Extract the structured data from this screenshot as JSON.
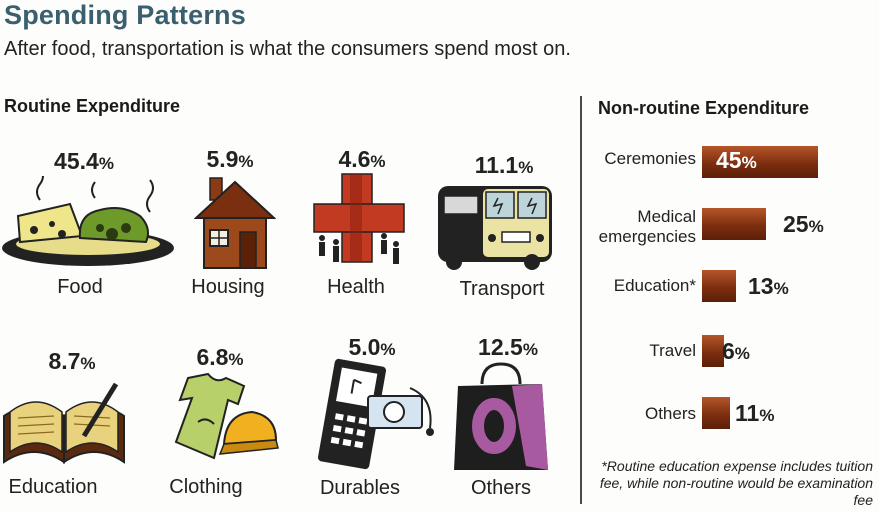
{
  "title": "Spending Patterns",
  "subtitle": "After food, transportation is what the consumers spend most on.",
  "routine": {
    "heading": "Routine Expenditure",
    "items": [
      {
        "label": "Food",
        "value": "45.4",
        "icon": "food-plate-icon"
      },
      {
        "label": "Housing",
        "value": "5.9",
        "icon": "house-icon"
      },
      {
        "label": "Health",
        "value": "4.6",
        "icon": "health-cross-icon"
      },
      {
        "label": "Transport",
        "value": "11.1",
        "icon": "bus-icon"
      },
      {
        "label": "Education",
        "value": "8.7",
        "icon": "book-icon"
      },
      {
        "label": "Clothing",
        "value": "6.8",
        "icon": "shirt-cap-icon"
      },
      {
        "label": "Durables",
        "value": "5.0",
        "icon": "phone-camera-icon"
      },
      {
        "label": "Others",
        "value": "12.5",
        "icon": "shopping-bag-icon"
      }
    ]
  },
  "non_routine": {
    "heading": "Non-routine Expenditure",
    "items": [
      {
        "label_line1": "Ceremonies",
        "label_line2": "",
        "value": "45"
      },
      {
        "label_line1": "Medical",
        "label_line2": "emergencies",
        "value": "25"
      },
      {
        "label_line1": "Education*",
        "label_line2": "",
        "value": "13"
      },
      {
        "label_line1": "Travel",
        "label_line2": "",
        "value": "6"
      },
      {
        "label_line1": "Others",
        "label_line2": "",
        "value": "11"
      }
    ]
  },
  "unit": "%",
  "footnote": "*Routine education expense includes tuition fee, while non-routine would be examination fee",
  "colors": {
    "title": "#3a5f6e",
    "bar": "#7d2e10",
    "icon_dark": "#222222"
  },
  "chart_data": [
    {
      "type": "table",
      "title": "Routine Expenditure",
      "categories": [
        "Food",
        "Housing",
        "Health",
        "Transport",
        "Education",
        "Clothing",
        "Durables",
        "Others"
      ],
      "values": [
        45.4,
        5.9,
        4.6,
        11.1,
        8.7,
        6.8,
        5.0,
        12.5
      ],
      "unit": "%"
    },
    {
      "type": "bar",
      "title": "Non-routine Expenditure",
      "orientation": "horizontal",
      "categories": [
        "Ceremonies",
        "Medical emergencies",
        "Education*",
        "Travel",
        "Others"
      ],
      "values": [
        45,
        25,
        13,
        6,
        11
      ],
      "unit": "%",
      "grid": false
    }
  ]
}
